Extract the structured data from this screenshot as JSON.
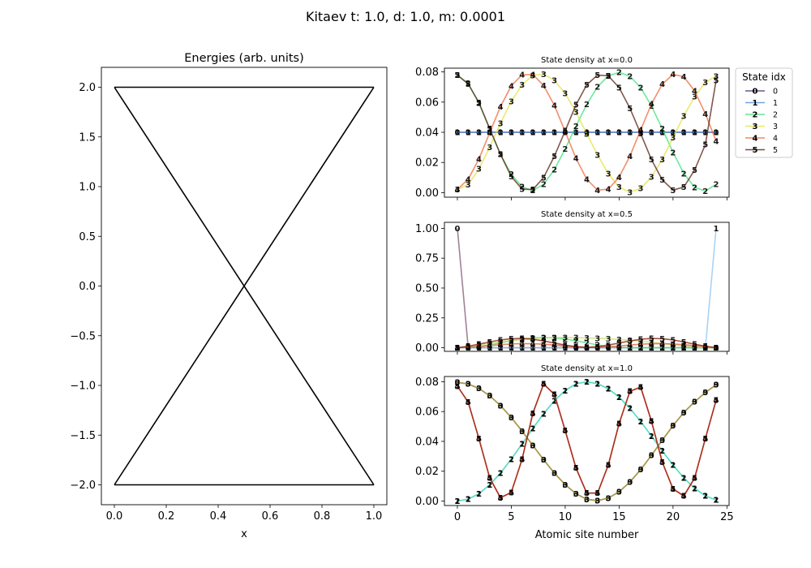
{
  "figure": {
    "suptitle": "Kitaev t: 1.0, d: 1.0, m: 0.0001"
  },
  "chart_data": [
    {
      "id": "energies",
      "type": "line",
      "title": "Energies (arb. units)",
      "xlabel": "x",
      "ylabel": "",
      "xlim": [
        -0.05,
        1.05
      ],
      "ylim": [
        -2.2,
        2.2
      ],
      "xticks": [
        0.0,
        0.2,
        0.4,
        0.6,
        0.8,
        1.0
      ],
      "xtick_labels": [
        "0.0",
        "0.2",
        "0.4",
        "0.6",
        "0.8",
        "1.0"
      ],
      "yticks": [
        -2.0,
        -1.5,
        -1.0,
        -0.5,
        0.0,
        0.5,
        1.0,
        1.5,
        2.0
      ],
      "ytick_labels": [
        "−2.0",
        "−1.5",
        "−1.0",
        "−0.5",
        "0.0",
        "0.5",
        "1.0",
        "1.5",
        "2.0"
      ],
      "color": "#000000",
      "series": [
        {
          "x": [
            0.0,
            1.0
          ],
          "values": [
            2.0,
            2.0
          ]
        },
        {
          "x": [
            0.0,
            1.0
          ],
          "values": [
            -2.0,
            -2.0
          ]
        },
        {
          "x": [
            0.0,
            1.0
          ],
          "values": [
            2.0,
            -2.0
          ]
        },
        {
          "x": [
            0.0,
            1.0
          ],
          "values": [
            -2.0,
            2.0
          ]
        }
      ]
    },
    {
      "id": "density_x0",
      "type": "line",
      "title": "State density at x=0.0",
      "xlim": [
        -1.2,
        25.2
      ],
      "ylim": [
        -0.003,
        0.0825
      ],
      "yticks": [
        0.0,
        0.02,
        0.04,
        0.06,
        0.08
      ],
      "ytick_labels": [
        "0.00",
        "0.02",
        "0.04",
        "0.06",
        "0.08"
      ],
      "xticks": [
        0,
        5,
        10,
        15,
        20,
        25
      ],
      "show_xtick_labels": false,
      "legend": {
        "title": "State idx",
        "location": "outside upper right",
        "entries": [
          "0",
          "1",
          "2",
          "3",
          "4",
          "5"
        ]
      },
      "series": [
        {
          "name": "0",
          "color": "#4b2a6e",
          "marker": "0",
          "values": [
            0.04,
            0.04,
            0.04,
            0.04,
            0.04,
            0.04,
            0.04,
            0.04,
            0.04,
            0.04,
            0.04,
            0.04,
            0.04,
            0.04,
            0.04,
            0.04,
            0.04,
            0.04,
            0.04,
            0.04,
            0.04,
            0.04,
            0.04,
            0.04,
            0.04
          ]
        },
        {
          "name": "1",
          "color": "#4e8ed8",
          "marker": "1",
          "values": [
            0.04,
            0.04,
            0.04,
            0.04,
            0.04,
            0.04,
            0.04,
            0.04,
            0.04,
            0.04,
            0.04,
            0.04,
            0.04,
            0.04,
            0.04,
            0.04,
            0.04,
            0.04,
            0.04,
            0.04,
            0.04,
            0.04,
            0.04,
            0.04,
            0.04
          ]
        },
        {
          "name": "2",
          "color": "#3fe07a",
          "marker": "2",
          "values": [
            0.0779,
            0.0725,
            0.0593,
            0.0423,
            0.0254,
            0.0122,
            0.0039,
            0.0015,
            0.0055,
            0.0153,
            0.029,
            0.0441,
            0.0585,
            0.0702,
            0.0774,
            0.0797,
            0.0771,
            0.0696,
            0.0574,
            0.0424,
            0.0267,
            0.0127,
            0.0035,
            0.0011,
            0.0055
          ]
        },
        {
          "name": "3",
          "color": "#e4e23c",
          "marker": "3",
          "values": [
            0.0021,
            0.0054,
            0.0157,
            0.0301,
            0.046,
            0.0605,
            0.0715,
            0.0777,
            0.0786,
            0.0744,
            0.0657,
            0.0534,
            0.039,
            0.025,
            0.0125,
            0.0036,
            0.0003,
            0.0028,
            0.0104,
            0.0221,
            0.0365,
            0.0509,
            0.0637,
            0.0732,
            0.0772
          ]
        },
        {
          "name": "4",
          "color": "#ee6a3c",
          "marker": "4",
          "values": [
            0.0021,
            0.0089,
            0.0222,
            0.0397,
            0.057,
            0.0707,
            0.0781,
            0.0783,
            0.071,
            0.0578,
            0.0404,
            0.0227,
            0.0089,
            0.0017,
            0.0023,
            0.0103,
            0.0242,
            0.0416,
            0.0588,
            0.0719,
            0.0784,
            0.0768,
            0.0674,
            0.0522,
            0.0342
          ]
        },
        {
          "name": "5",
          "color": "#5a2010",
          "marker": "5",
          "values": [
            0.0779,
            0.072,
            0.0597,
            0.0424,
            0.0254,
            0.0107,
            0.0023,
            0.002,
            0.01,
            0.0242,
            0.041,
            0.0582,
            0.0715,
            0.078,
            0.0774,
            0.0696,
            0.056,
            0.0391,
            0.0219,
            0.0085,
            0.0017,
            0.0037,
            0.015,
            0.032,
            0.0745
          ]
        }
      ]
    },
    {
      "id": "density_x05",
      "type": "line",
      "title": "State density at x=0.5",
      "xlim": [
        -1.2,
        25.2
      ],
      "ylim": [
        -0.03,
        1.05
      ],
      "yticks": [
        0.0,
        0.25,
        0.5,
        0.75,
        1.0
      ],
      "ytick_labels": [
        "0.00",
        "0.25",
        "0.50",
        "0.75",
        "1.00"
      ],
      "xticks": [
        0,
        5,
        10,
        15,
        20,
        25
      ],
      "show_xtick_labels": false,
      "series": [
        {
          "name": "0",
          "color": "#7c5a74",
          "marker": "0",
          "values": [
            1.0,
            0.0,
            0.0,
            0.0,
            0.0,
            0.0,
            0.0,
            0.0,
            0.0,
            0.0,
            0.0,
            0.0,
            0.0,
            0.0,
            0.0,
            0.0,
            0.0,
            0.0,
            0.0,
            0.0,
            0.0,
            0.0,
            0.0,
            0.0,
            0.0
          ]
        },
        {
          "name": "1",
          "color": "#8ec3f2",
          "marker": "1",
          "values": [
            0.0,
            0.0,
            0.0,
            0.0,
            0.0,
            0.0,
            0.0,
            0.0,
            0.0,
            0.0,
            0.0,
            0.0,
            0.0,
            0.0,
            0.0,
            0.0,
            0.0,
            0.0,
            0.0,
            0.0,
            0.0,
            0.0,
            0.0,
            0.0,
            1.0
          ]
        },
        {
          "name": "2",
          "color": "#3fe07a",
          "marker": "2",
          "values": [
            0.0,
            0.003,
            0.011,
            0.024,
            0.041,
            0.058,
            0.073,
            0.083,
            0.086,
            0.083,
            0.073,
            0.058,
            0.041,
            0.024,
            0.011,
            0.003,
            0.0,
            0.0,
            0.0,
            0.0,
            0.0,
            0.0,
            0.0,
            0.0,
            0.0
          ]
        },
        {
          "name": "3",
          "color": "#c8e060",
          "marker": "3",
          "values": [
            0.0,
            0.012,
            0.025,
            0.038,
            0.05,
            0.061,
            0.07,
            0.077,
            0.082,
            0.085,
            0.086,
            0.085,
            0.083,
            0.08,
            0.076,
            0.07,
            0.063,
            0.055,
            0.046,
            0.036,
            0.026,
            0.016,
            0.008,
            0.0,
            0.0
          ]
        },
        {
          "name": "4",
          "color": "#e05a2c",
          "marker": "4",
          "values": [
            0.0,
            0.003,
            0.01,
            0.018,
            0.026,
            0.032,
            0.035,
            0.034,
            0.03,
            0.023,
            0.015,
            0.008,
            0.004,
            0.004,
            0.008,
            0.015,
            0.023,
            0.03,
            0.034,
            0.035,
            0.032,
            0.026,
            0.018,
            0.01,
            0.0
          ]
        },
        {
          "name": "5",
          "color": "#8a1a0a",
          "marker": "5",
          "values": [
            0.0,
            0.013,
            0.03,
            0.049,
            0.066,
            0.076,
            0.078,
            0.071,
            0.057,
            0.04,
            0.022,
            0.009,
            0.003,
            0.009,
            0.022,
            0.04,
            0.057,
            0.071,
            0.078,
            0.076,
            0.066,
            0.049,
            0.03,
            0.013,
            0.0
          ]
        }
      ]
    },
    {
      "id": "density_x1",
      "type": "line",
      "title": "State density at x=1.0",
      "xlabel": "Atomic site number",
      "xlim": [
        -1.2,
        25.2
      ],
      "ylim": [
        -0.003,
        0.0835
      ],
      "yticks": [
        0.0,
        0.02,
        0.04,
        0.06,
        0.08
      ],
      "ytick_labels": [
        "0.00",
        "0.02",
        "0.04",
        "0.06",
        "0.08"
      ],
      "xticks": [
        0,
        5,
        10,
        15,
        20,
        25
      ],
      "xtick_labels": [
        "0",
        "5",
        "10",
        "15",
        "20",
        "25"
      ],
      "show_xtick_labels": true,
      "series": [
        {
          "name": "0",
          "color": "#6a3a1e",
          "marker": "0",
          "values": [
            0.0796,
            0.0785,
            0.0755,
            0.0706,
            0.064,
            0.056,
            0.0469,
            0.0373,
            0.0277,
            0.0187,
            0.011,
            0.0049,
            0.0012,
            0.0003,
            0.002,
            0.0062,
            0.0127,
            0.0211,
            0.0307,
            0.0408,
            0.0506,
            0.0594,
            0.0665,
            0.0728,
            0.078
          ]
        },
        {
          "name": "1",
          "color": "#7ec8ec",
          "marker": "1",
          "values": [
            0.0,
            0.0013,
            0.0049,
            0.0109,
            0.0187,
            0.0281,
            0.0383,
            0.0487,
            0.0586,
            0.0673,
            0.0741,
            0.0786,
            0.0799,
            0.0787,
            0.0753,
            0.0697,
            0.0622,
            0.0533,
            0.0436,
            0.0336,
            0.0241,
            0.0155,
            0.0085,
            0.0035,
            0.0007
          ]
        },
        {
          "name": "2",
          "color": "#3fe0b0",
          "marker": "2",
          "values": [
            0.0,
            0.0013,
            0.0049,
            0.0109,
            0.0187,
            0.0281,
            0.0383,
            0.0487,
            0.0586,
            0.0673,
            0.0741,
            0.0786,
            0.0799,
            0.0787,
            0.0753,
            0.0697,
            0.0622,
            0.0533,
            0.0436,
            0.0336,
            0.0241,
            0.0155,
            0.0085,
            0.0035,
            0.0007
          ]
        },
        {
          "name": "3",
          "color": "#b0a844",
          "marker": "3",
          "values": [
            0.0796,
            0.0785,
            0.0755,
            0.0706,
            0.064,
            0.056,
            0.0469,
            0.0373,
            0.0277,
            0.0187,
            0.011,
            0.0049,
            0.0012,
            0.0003,
            0.002,
            0.0062,
            0.0127,
            0.0211,
            0.0307,
            0.0408,
            0.0506,
            0.0594,
            0.0665,
            0.0728,
            0.078
          ]
        },
        {
          "name": "4",
          "color": "#d04a2a",
          "marker": "4",
          "values": [
            0.077,
            0.0663,
            0.0419,
            0.0156,
            0.0022,
            0.0058,
            0.0279,
            0.0588,
            0.0785,
            0.0715,
            0.0473,
            0.0222,
            0.0053,
            0.0053,
            0.0242,
            0.052,
            0.0736,
            0.0764,
            0.0535,
            0.0261,
            0.0081,
            0.0034,
            0.0155,
            0.042,
            0.0676
          ]
        },
        {
          "name": "5",
          "color": "#9a1a08",
          "marker": "5",
          "values": [
            0.077,
            0.0663,
            0.0419,
            0.0156,
            0.0022,
            0.0058,
            0.0279,
            0.0588,
            0.0785,
            0.0715,
            0.0473,
            0.0222,
            0.0053,
            0.0053,
            0.0242,
            0.052,
            0.0736,
            0.0764,
            0.0535,
            0.0261,
            0.0081,
            0.0034,
            0.0155,
            0.042,
            0.0676
          ]
        }
      ]
    }
  ]
}
